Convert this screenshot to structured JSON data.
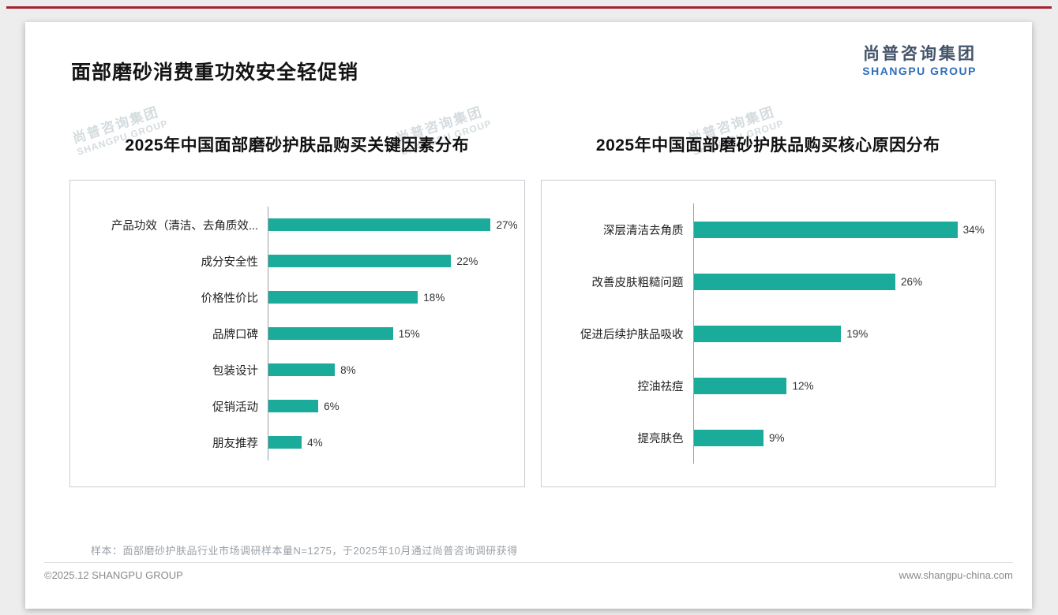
{
  "page": {
    "title": "面部磨砂消费重功效安全轻促销",
    "logo": {
      "cn": "尚普咨询集团",
      "en": "SHANGPU GROUP"
    },
    "watermark": {
      "line1": "尚普咨询集团",
      "line2": "SHANGPU GROUP"
    },
    "footnote": "样本：面部磨砂护肤品行业市场调研样本量N=1275，于2025年10月通过尚普咨询调研获得",
    "footer_left": "©2025.12 SHANGPU GROUP",
    "footer_right": "www.shangpu-china.com"
  },
  "colors": {
    "bar": "#1AAB9B",
    "accent_line": "#A42330",
    "logo_cn": "#44546A",
    "logo_en": "#2F6EBA"
  },
  "chart_data": [
    {
      "type": "bar",
      "orientation": "horizontal",
      "title": "2025年中国面部磨砂护肤品购买关键因素分布",
      "categories": [
        "产品功效（清洁、去角质效...",
        "成分安全性",
        "价格性价比",
        "品牌口碑",
        "包装设计",
        "促销活动",
        "朋友推荐"
      ],
      "values": [
        27,
        22,
        18,
        15,
        8,
        6,
        4
      ],
      "value_labels": [
        "27%",
        "22%",
        "18%",
        "15%",
        "8%",
        "6%",
        "4%"
      ],
      "xlabel": "",
      "ylabel": "",
      "xlim": [
        0,
        30
      ],
      "grid": false,
      "legend": false
    },
    {
      "type": "bar",
      "orientation": "horizontal",
      "title": "2025年中国面部磨砂护肤品购买核心原因分布",
      "categories": [
        "深层清洁去角质",
        "改善皮肤粗糙问题",
        "促进后续护肤品吸收",
        "控油祛痘",
        "提亮肤色"
      ],
      "values": [
        34,
        26,
        19,
        12,
        9
      ],
      "value_labels": [
        "34%",
        "26%",
        "19%",
        "12%",
        "9%"
      ],
      "xlabel": "",
      "ylabel": "",
      "xlim": [
        0,
        38
      ],
      "grid": false,
      "legend": false
    }
  ]
}
